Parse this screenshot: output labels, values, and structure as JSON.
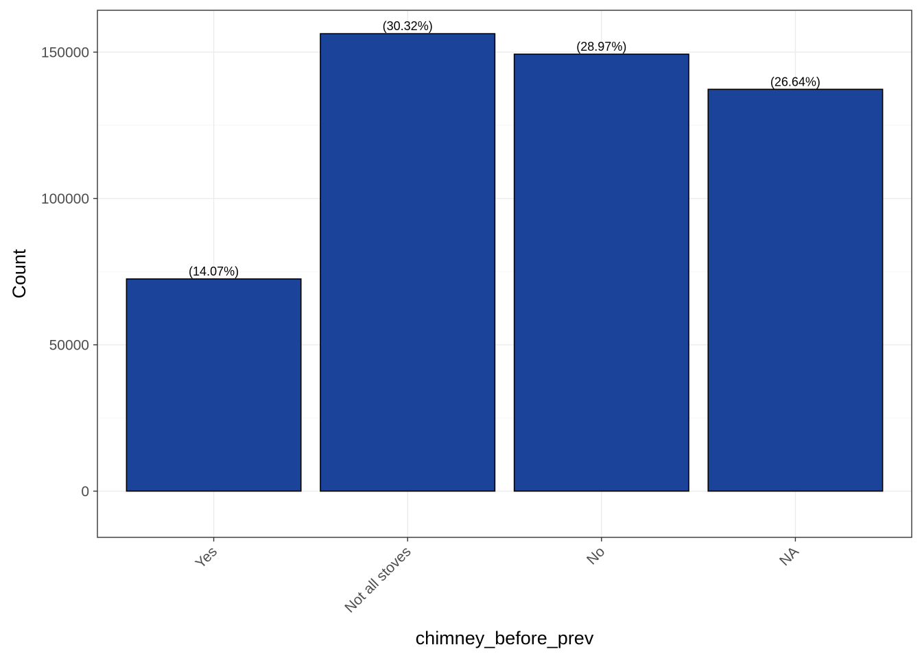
{
  "chart_data": {
    "type": "bar",
    "categories": [
      "Yes",
      "Not all stoves",
      "No",
      "NA"
    ],
    "values": [
      72500,
      156300,
      149300,
      137300
    ],
    "data_labels": [
      "(14.07%)",
      "(30.32%)",
      "(28.97%)",
      "(26.64%)"
    ],
    "xlabel": "chimney_before_prev",
    "ylabel": "Count",
    "ylim": [
      -15800,
      164300
    ],
    "y_ticks": [
      0,
      50000,
      100000,
      150000
    ],
    "y_tick_labels": [
      "0",
      "50000",
      "100000",
      "150000"
    ],
    "grid": true,
    "legend": "none",
    "x_tick_rotation": 45,
    "colors": {
      "bar_fill": "#1a4399",
      "bar_stroke": "#000000",
      "grid_major": "#ebebeb",
      "grid_minor": "#f5f5f5",
      "panel_border": "#333333"
    }
  }
}
